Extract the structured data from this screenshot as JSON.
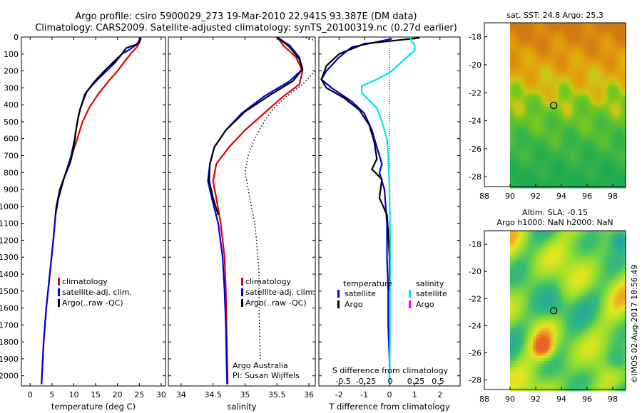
{
  "header": {
    "line1": "Argo profile: csiro 5900029_273 19-Mar-2010 22.941S 93.387E (DM data)",
    "line2": "Climatology: CARS2009. Satellite-adjusted climatology: synTS_20100319.nc (0.27d earlier)"
  },
  "side_stamp": "©IMOS 02-Aug-2017 18:56:49",
  "colors": {
    "climatology": "#e00000",
    "satellite": "#0000e0",
    "argo": "#000000",
    "sat_salinity": "#00e5e5",
    "argo_salinity": "#ff00ff"
  },
  "chart_data": [
    {
      "type": "line",
      "name": "temperature-profile",
      "xlabel": "temperature (deg C)",
      "xlim": [
        -2,
        31
      ],
      "ylim": [
        2060,
        0
      ],
      "xticks": [
        0,
        5,
        10,
        15,
        20,
        25,
        30
      ],
      "yticks": [
        0,
        100,
        200,
        300,
        400,
        500,
        600,
        700,
        800,
        900,
        1000,
        1100,
        1200,
        1300,
        1400,
        1500,
        1600,
        1700,
        1800,
        1900,
        2000
      ],
      "legend": [
        "climatology",
        "satellite-adj. clim.",
        "Argo(..raw -QC)"
      ],
      "series": [
        {
          "name": "climatology",
          "color": "#e00000",
          "points": [
            [
              25.3,
              5
            ],
            [
              25.1,
              30
            ],
            [
              24.4,
              60
            ],
            [
              23.0,
              100
            ],
            [
              21.5,
              150
            ],
            [
              20.0,
              200
            ],
            [
              18.0,
              260
            ],
            [
              15.5,
              340
            ],
            [
              13.5,
              420
            ],
            [
              12.0,
              500
            ],
            [
              10.8,
              600
            ],
            [
              9.5,
              700
            ],
            [
              8.2,
              800
            ],
            [
              6.8,
              900
            ],
            [
              6.0,
              1000
            ],
            [
              5.3,
              1200
            ],
            [
              4.5,
              1400
            ],
            [
              3.7,
              1600
            ],
            [
              3.1,
              1800
            ],
            [
              2.6,
              2050
            ]
          ]
        },
        {
          "name": "satellite-adj. clim.",
          "color": "#0000e0",
          "points": [
            [
              25.2,
              5
            ],
            [
              24.6,
              40
            ],
            [
              23.0,
              70
            ],
            [
              21.0,
              100
            ],
            [
              19.5,
              150
            ],
            [
              17.5,
              200
            ],
            [
              15.5,
              250
            ],
            [
              13.0,
              320
            ],
            [
              11.5,
              420
            ],
            [
              10.8,
              500
            ],
            [
              10.2,
              600
            ],
            [
              9.4,
              700
            ],
            [
              8.2,
              800
            ],
            [
              6.8,
              900
            ],
            [
              6.0,
              1000
            ],
            [
              5.3,
              1200
            ],
            [
              4.5,
              1400
            ],
            [
              3.7,
              1600
            ],
            [
              3.1,
              1800
            ],
            [
              2.6,
              2050
            ]
          ]
        },
        {
          "name": "Argo(..raw -QC)",
          "color": "#000000",
          "points": [
            [
              25.4,
              5
            ],
            [
              25.0,
              30
            ],
            [
              24.2,
              45
            ],
            [
              22.0,
              65
            ],
            [
              21.0,
              100
            ],
            [
              19.0,
              150
            ],
            [
              17.0,
              200
            ],
            [
              14.5,
              270
            ],
            [
              12.5,
              340
            ],
            [
              11.2,
              450
            ],
            [
              10.5,
              550
            ],
            [
              10.0,
              650
            ],
            [
              9.2,
              740
            ],
            [
              7.8,
              830
            ],
            [
              6.5,
              950
            ],
            [
              5.8,
              1050
            ]
          ]
        }
      ]
    },
    {
      "type": "line",
      "name": "salinity-profile",
      "xlabel": "salinity",
      "xlim": [
        33.8,
        36.1
      ],
      "ylim": [
        2060,
        0
      ],
      "xticks": [
        34,
        34.5,
        35,
        35.5,
        36
      ],
      "legend": [
        "climatology",
        "satellite-adj. clim.",
        "Argo(..raw -QC)"
      ],
      "annotation": [
        "Argo Australia",
        "PI: Susan Wijffels"
      ],
      "series": [
        {
          "name": "climatology",
          "color": "#e00000",
          "points": [
            [
              35.5,
              0
            ],
            [
              35.6,
              50
            ],
            [
              35.8,
              120
            ],
            [
              35.9,
              200
            ],
            [
              35.85,
              280
            ],
            [
              35.6,
              350
            ],
            [
              35.3,
              450
            ],
            [
              35.0,
              550
            ],
            [
              34.75,
              650
            ],
            [
              34.55,
              750
            ],
            [
              34.5,
              850
            ],
            [
              34.55,
              950
            ],
            [
              34.62,
              1100
            ],
            [
              34.68,
              1300
            ],
            [
              34.7,
              1500
            ],
            [
              34.71,
              1700
            ],
            [
              34.72,
              1900
            ],
            [
              34.73,
              2050
            ]
          ]
        },
        {
          "name": "satellite-adj. clim.",
          "color": "#0000e0",
          "points": [
            [
              35.5,
              0
            ],
            [
              35.7,
              50
            ],
            [
              35.85,
              120
            ],
            [
              35.9,
              190
            ],
            [
              35.7,
              260
            ],
            [
              35.3,
              350
            ],
            [
              34.95,
              450
            ],
            [
              34.7,
              550
            ],
            [
              34.52,
              650
            ],
            [
              34.45,
              750
            ],
            [
              34.42,
              850
            ],
            [
              34.48,
              950
            ],
            [
              34.58,
              1100
            ],
            [
              34.65,
              1300
            ],
            [
              34.68,
              1500
            ],
            [
              34.7,
              1700
            ],
            [
              34.71,
              1900
            ],
            [
              34.72,
              2050
            ]
          ]
        },
        {
          "name": "Argo(..raw -QC)",
          "color": "#000000",
          "points": [
            [
              35.5,
              0
            ],
            [
              35.7,
              60
            ],
            [
              35.85,
              130
            ],
            [
              35.9,
              190
            ],
            [
              35.75,
              260
            ],
            [
              35.4,
              340
            ],
            [
              35.0,
              440
            ],
            [
              34.7,
              550
            ],
            [
              34.52,
              650
            ],
            [
              34.45,
              750
            ],
            [
              34.44,
              850
            ],
            [
              34.5,
              950
            ],
            [
              34.58,
              1050
            ]
          ]
        },
        {
          "name": "",
          "color": "#000000",
          "dotted": true,
          "points": [
            [
              35.9,
              0
            ],
            [
              36.1,
              20
            ]
          ]
        },
        {
          "name": "",
          "color": "#000000",
          "dotted": true,
          "points": [
            [
              36.1,
              200
            ],
            [
              35.9,
              280
            ],
            [
              35.65,
              350
            ],
            [
              35.45,
              420
            ],
            [
              35.3,
              500
            ],
            [
              35.15,
              600
            ],
            [
              35.05,
              700
            ],
            [
              35.0,
              800
            ],
            [
              35.05,
              900
            ],
            [
              35.1,
              1000
            ],
            [
              35.15,
              1100
            ],
            [
              35.18,
              1200
            ],
            [
              35.2,
              1300
            ],
            [
              35.22,
              1400
            ],
            [
              35.22,
              1600
            ],
            [
              35.23,
              1800
            ],
            [
              35.24,
              1900
            ]
          ]
        }
      ]
    },
    {
      "type": "line",
      "name": "difference-profile",
      "xlabel": "T difference from climatology",
      "xlabel_top": "S difference from climatology",
      "xlim": [
        -2.8,
        2.8
      ],
      "ylim": [
        2060,
        0
      ],
      "xticks": [
        -2,
        -1,
        0,
        1,
        2
      ],
      "xticks_s": [
        "-0.5",
        "-0.25",
        "0",
        "0.25",
        "0.5"
      ],
      "legend_titles": [
        "temperature",
        "salinity"
      ],
      "legend": [
        "satellite",
        "Argo",
        "satellite",
        "Argo"
      ],
      "series": [
        {
          "name": "satellite",
          "color": "#0000e0",
          "points": [
            [
              0.1,
              10
            ],
            [
              -1.5,
              60
            ],
            [
              -2.0,
              120
            ],
            [
              -2.5,
              200
            ],
            [
              -2.7,
              250
            ],
            [
              -2.3,
              300
            ],
            [
              -1.5,
              380
            ],
            [
              -1.0,
              450
            ],
            [
              -0.7,
              550
            ],
            [
              -0.5,
              650
            ],
            [
              -0.3,
              750
            ],
            [
              -0.4,
              800
            ],
            [
              -0.2,
              900
            ],
            [
              -0.15,
              1000
            ],
            [
              -0.1,
              1100
            ],
            [
              -0.1,
              1300
            ],
            [
              -0.05,
              1500
            ],
            [
              -0.05,
              1700
            ],
            [
              0,
              1900
            ],
            [
              0,
              2050
            ]
          ]
        },
        {
          "name": "Argo",
          "color": "#000000",
          "points": [
            [
              1.2,
              5
            ],
            [
              -1.0,
              40
            ],
            [
              -2.0,
              100
            ],
            [
              -2.5,
              170
            ],
            [
              -2.7,
              250
            ],
            [
              -2.5,
              300
            ],
            [
              -1.8,
              360
            ],
            [
              -1.2,
              430
            ],
            [
              -0.8,
              520
            ],
            [
              -0.6,
              620
            ],
            [
              -0.5,
              720
            ],
            [
              -0.7,
              780
            ],
            [
              -0.3,
              840
            ],
            [
              -0.4,
              950
            ],
            [
              -0.1,
              1050
            ],
            [
              -0.05,
              1150
            ],
            [
              0,
              1300
            ],
            [
              0,
              1500
            ]
          ]
        },
        {
          "name": "satellite",
          "color": "#00e5e5",
          "points": [
            [
              0.8,
              0
            ],
            [
              0.9,
              30
            ],
            [
              1.0,
              50
            ],
            [
              1.0,
              80
            ],
            [
              0.6,
              130
            ],
            [
              0.1,
              200
            ],
            [
              -0.5,
              250
            ],
            [
              -1.1,
              290
            ],
            [
              -1.1,
              330
            ],
            [
              -0.5,
              420
            ],
            [
              -0.3,
              500
            ],
            [
              -0.1,
              600
            ],
            [
              -0.05,
              700
            ],
            [
              0,
              900
            ],
            [
              0.02,
              1100
            ],
            [
              0.03,
              1300
            ],
            [
              0.02,
              1500
            ],
            [
              0.02,
              1700
            ],
            [
              0.01,
              1900
            ],
            [
              0,
              2050
            ]
          ]
        },
        {
          "name": "Argo",
          "color": "#ff00ff",
          "points": []
        }
      ]
    },
    {
      "type": "heatmap",
      "name": "sst-map",
      "title": "sat. SST: 24.8  Argo: 25.3",
      "xlim": [
        88,
        99
      ],
      "ylim": [
        -28.7,
        -17
      ],
      "xticks": [
        88,
        90,
        92,
        94,
        96,
        98
      ],
      "yticks": [
        -18,
        -20,
        -22,
        -24,
        -26,
        -28
      ],
      "marker": [
        93.4,
        -22.9
      ],
      "data_start_lon": 90
    },
    {
      "type": "heatmap",
      "name": "sla-map",
      "title": "Altim. SLA: -0.15",
      "subtitle": "Argo h1000: NaN  h2000: NaN",
      "xlim": [
        88,
        99
      ],
      "ylim": [
        -28.7,
        -17
      ],
      "xticks": [
        88,
        90,
        92,
        94,
        96,
        98
      ],
      "yticks": [
        -18,
        -20,
        -22,
        -24,
        -26,
        -28
      ],
      "marker": [
        93.4,
        -22.9
      ],
      "data_start_lon": 90
    }
  ]
}
